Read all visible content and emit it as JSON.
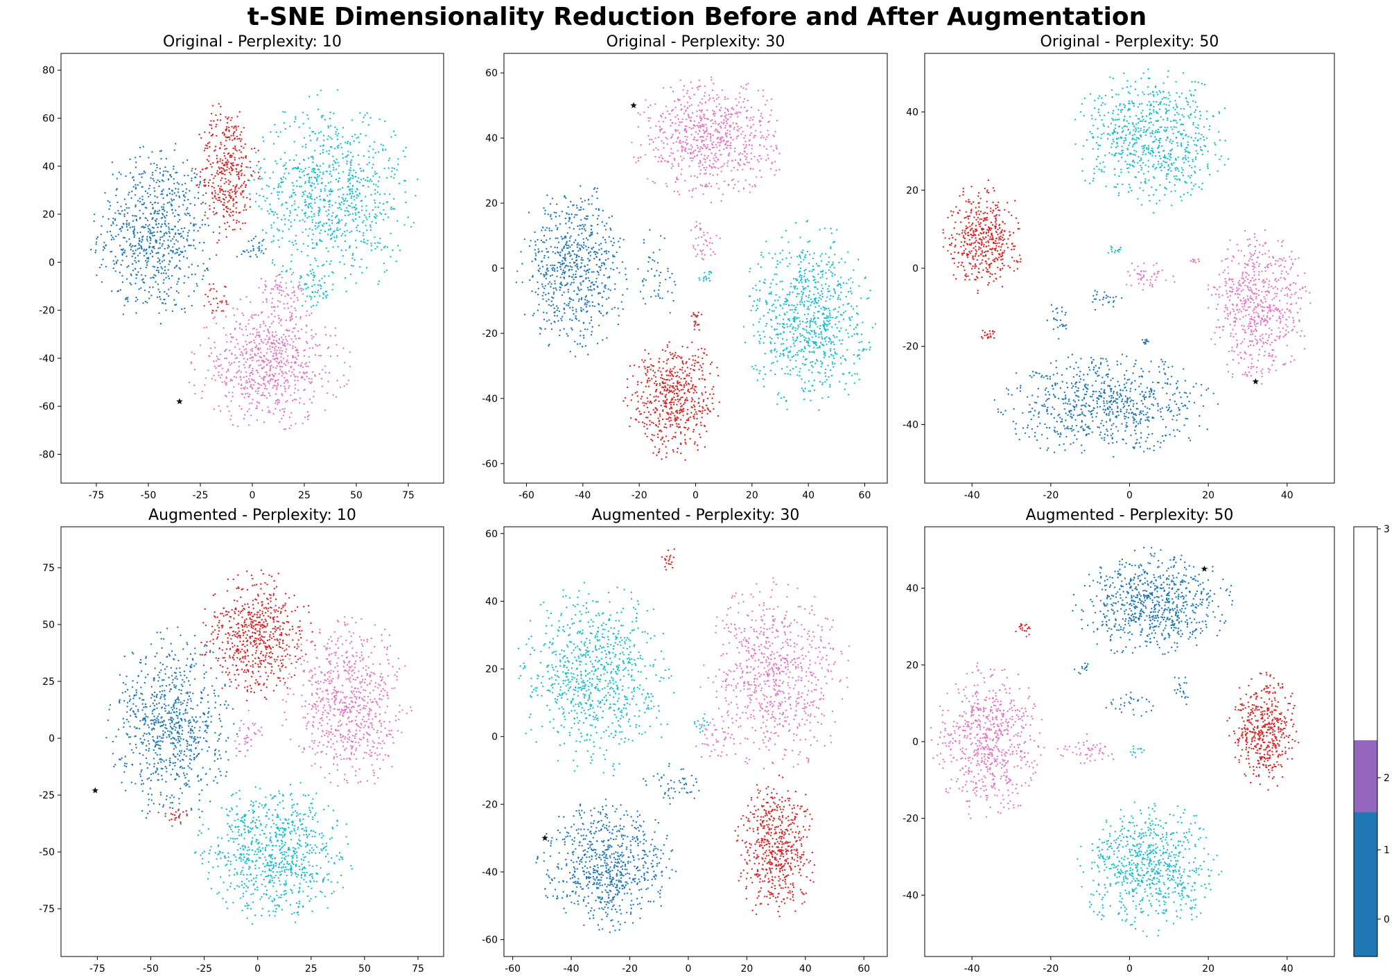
{
  "figure": {
    "title": "t-SNE Dimensionality Reduction Before and After Augmentation"
  },
  "colors": {
    "class_0": "#1f77b4",
    "class_1": "#d62728",
    "class_2": "#e377c2",
    "class_3": "#17becf",
    "star": "#111111",
    "colorbar": [
      "#1f77b4",
      "#1f77b4",
      "#9467bd",
      "#ffffff"
    ]
  },
  "chart_data": [
    {
      "type": "scatter",
      "title": "Original - Perplexity: 10",
      "xlim": [
        -92,
        92
      ],
      "ylim": [
        -92,
        87
      ],
      "xticks": [
        -75,
        -50,
        -25,
        0,
        25,
        50,
        75
      ],
      "yticks": [
        -80,
        -60,
        -40,
        -20,
        0,
        20,
        40,
        60,
        80
      ],
      "clusters": [
        {
          "class": 0,
          "cx": -47,
          "cy": 12,
          "rx": 30,
          "ry": 38,
          "n": 720
        },
        {
          "class": 1,
          "cx": -12,
          "cy": 38,
          "rx": 15,
          "ry": 30,
          "n": 380
        },
        {
          "class": 3,
          "cx": 38,
          "cy": 28,
          "rx": 40,
          "ry": 42,
          "n": 850
        },
        {
          "class": 2,
          "cx": 8,
          "cy": -42,
          "rx": 38,
          "ry": 28,
          "n": 720
        },
        {
          "class": 2,
          "cx": 14,
          "cy": -12,
          "rx": 14,
          "ry": 8,
          "n": 60
        },
        {
          "class": 1,
          "cx": -18,
          "cy": -16,
          "rx": 8,
          "ry": 8,
          "n": 30
        },
        {
          "class": 3,
          "cx": 30,
          "cy": -12,
          "rx": 10,
          "ry": 8,
          "n": 40
        },
        {
          "class": 0,
          "cx": 0,
          "cy": 5,
          "rx": 8,
          "ry": 6,
          "n": 30
        }
      ],
      "star": {
        "x": -35,
        "y": -58
      }
    },
    {
      "type": "scatter",
      "title": "Original - Perplexity: 30",
      "xlim": [
        -68,
        68
      ],
      "ylim": [
        -66,
        66
      ],
      "xticks": [
        -60,
        -40,
        -20,
        0,
        20,
        40,
        60
      ],
      "yticks": [
        -60,
        -40,
        -20,
        0,
        20,
        40,
        60
      ],
      "clusters": [
        {
          "class": 2,
          "cx": 5,
          "cy": 40,
          "rx": 27,
          "ry": 19,
          "n": 700
        },
        {
          "class": 0,
          "cx": -43,
          "cy": 0,
          "rx": 20,
          "ry": 26,
          "n": 650
        },
        {
          "class": 3,
          "cx": 40,
          "cy": -15,
          "rx": 23,
          "ry": 29,
          "n": 800
        },
        {
          "class": 1,
          "cx": -8,
          "cy": -40,
          "rx": 17,
          "ry": 19,
          "n": 560
        },
        {
          "class": 0,
          "cx": -13,
          "cy": -2,
          "rx": 8,
          "ry": 16,
          "n": 50
        },
        {
          "class": 2,
          "cx": 3,
          "cy": 8,
          "rx": 6,
          "ry": 8,
          "n": 40
        },
        {
          "class": 1,
          "cx": 0,
          "cy": -16,
          "rx": 3,
          "ry": 4,
          "n": 20
        },
        {
          "class": 3,
          "cx": 4,
          "cy": -3,
          "rx": 3,
          "ry": 3,
          "n": 15
        }
      ],
      "star": {
        "x": -22,
        "y": 50
      }
    },
    {
      "type": "scatter",
      "title": "Original - Perplexity: 50",
      "xlim": [
        -52,
        52
      ],
      "ylim": [
        -55,
        55
      ],
      "xticks": [
        -40,
        -20,
        0,
        20,
        40
      ],
      "yticks": [
        -40,
        -20,
        0,
        20,
        40
      ],
      "clusters": [
        {
          "class": 3,
          "cx": 6,
          "cy": 33,
          "rx": 20,
          "ry": 18,
          "n": 720
        },
        {
          "class": 1,
          "cx": -37,
          "cy": 8,
          "rx": 10,
          "ry": 14,
          "n": 460
        },
        {
          "class": 2,
          "cx": 33,
          "cy": -10,
          "rx": 13,
          "ry": 20,
          "n": 620
        },
        {
          "class": 0,
          "cx": -6,
          "cy": -35,
          "rx": 28,
          "ry": 13,
          "n": 720
        },
        {
          "class": 1,
          "cx": -36,
          "cy": -17,
          "rx": 2,
          "ry": 2,
          "n": 20
        },
        {
          "class": 0,
          "cx": -18,
          "cy": -13,
          "rx": 3,
          "ry": 5,
          "n": 25
        },
        {
          "class": 0,
          "cx": -6,
          "cy": -8,
          "rx": 5,
          "ry": 3,
          "n": 25
        },
        {
          "class": 2,
          "cx": 5,
          "cy": -2,
          "rx": 7,
          "ry": 4,
          "n": 45
        },
        {
          "class": 3,
          "cx": -4,
          "cy": 5,
          "rx": 2,
          "ry": 2,
          "n": 12
        },
        {
          "class": 2,
          "cx": 17,
          "cy": 2,
          "rx": 2,
          "ry": 1,
          "n": 10
        },
        {
          "class": 0,
          "cx": 4,
          "cy": -19,
          "rx": 1,
          "ry": 1,
          "n": 10
        }
      ],
      "star": {
        "x": 32,
        "y": -29
      }
    },
    {
      "type": "scatter",
      "title": "Augmented - Perplexity: 10",
      "xlim": [
        -92,
        87
      ],
      "ylim": [
        -96,
        93
      ],
      "xticks": [
        -75,
        -50,
        -25,
        0,
        25,
        50,
        75
      ],
      "yticks": [
        -75,
        -50,
        -25,
        0,
        25,
        50,
        75
      ],
      "clusters": [
        {
          "class": 0,
          "cx": -40,
          "cy": 5,
          "rx": 30,
          "ry": 42,
          "n": 780
        },
        {
          "class": 1,
          "cx": 0,
          "cy": 45,
          "rx": 26,
          "ry": 28,
          "n": 600
        },
        {
          "class": 2,
          "cx": 42,
          "cy": 15,
          "rx": 30,
          "ry": 38,
          "n": 700
        },
        {
          "class": 3,
          "cx": 8,
          "cy": -50,
          "rx": 36,
          "ry": 32,
          "n": 800
        },
        {
          "class": 1,
          "cx": -38,
          "cy": -34,
          "rx": 6,
          "ry": 5,
          "n": 20
        },
        {
          "class": 2,
          "cx": -5,
          "cy": 0,
          "rx": 8,
          "ry": 12,
          "n": 40
        }
      ],
      "star": {
        "x": -76,
        "y": -23
      }
    },
    {
      "type": "scatter",
      "title": "Augmented - Perplexity: 30",
      "xlim": [
        -63,
        68
      ],
      "ylim": [
        -65,
        62
      ],
      "xticks": [
        -60,
        -40,
        -20,
        0,
        20,
        40,
        60
      ],
      "yticks": [
        -60,
        -40,
        -20,
        0,
        20,
        40,
        60
      ],
      "clusters": [
        {
          "class": 3,
          "cx": -32,
          "cy": 17,
          "rx": 27,
          "ry": 28,
          "n": 800
        },
        {
          "class": 2,
          "cx": 30,
          "cy": 18,
          "rx": 25,
          "ry": 28,
          "n": 720
        },
        {
          "class": 0,
          "cx": -28,
          "cy": -38,
          "rx": 23,
          "ry": 19,
          "n": 720
        },
        {
          "class": 1,
          "cx": 30,
          "cy": -33,
          "rx": 14,
          "ry": 21,
          "n": 560
        },
        {
          "class": 1,
          "cx": -6,
          "cy": 52,
          "rx": 3,
          "ry": 4,
          "n": 20
        },
        {
          "class": 0,
          "cx": -5,
          "cy": -14,
          "rx": 12,
          "ry": 6,
          "n": 50
        },
        {
          "class": 2,
          "cx": 10,
          "cy": 0,
          "rx": 8,
          "ry": 10,
          "n": 40
        },
        {
          "class": 3,
          "cx": 5,
          "cy": 4,
          "rx": 3,
          "ry": 3,
          "n": 15
        }
      ],
      "star": {
        "x": -49,
        "y": -30
      }
    },
    {
      "type": "scatter",
      "title": "Augmented - Perplexity: 50",
      "xlim": [
        -52,
        52
      ],
      "ylim": [
        -56,
        56
      ],
      "xticks": [
        -40,
        -20,
        0,
        20,
        40
      ],
      "yticks": [
        -40,
        -20,
        0,
        20,
        40
      ],
      "clusters": [
        {
          "class": 0,
          "cx": 6,
          "cy": 36,
          "rx": 20,
          "ry": 14,
          "n": 720
        },
        {
          "class": 2,
          "cx": -36,
          "cy": 0,
          "rx": 14,
          "ry": 20,
          "n": 640
        },
        {
          "class": 1,
          "cx": 34,
          "cy": 3,
          "rx": 9,
          "ry": 15,
          "n": 460
        },
        {
          "class": 3,
          "cx": 5,
          "cy": -33,
          "rx": 18,
          "ry": 17,
          "n": 720
        },
        {
          "class": 1,
          "cx": -27,
          "cy": 29,
          "rx": 2,
          "ry": 2,
          "n": 20
        },
        {
          "class": 0,
          "cx": -12,
          "cy": 19,
          "rx": 2,
          "ry": 2,
          "n": 12
        },
        {
          "class": 0,
          "cx": 0,
          "cy": 10,
          "rx": 6,
          "ry": 4,
          "n": 30
        },
        {
          "class": 0,
          "cx": 13,
          "cy": 13,
          "rx": 2,
          "ry": 6,
          "n": 20
        },
        {
          "class": 2,
          "cx": -10,
          "cy": -2,
          "rx": 9,
          "ry": 4,
          "n": 50
        },
        {
          "class": 3,
          "cx": 2,
          "cy": -3,
          "rx": 2,
          "ry": 2,
          "n": 12
        }
      ],
      "star": {
        "x": 19,
        "y": 45
      }
    }
  ],
  "colorbar": {
    "tick_labels": [
      "0",
      "1",
      "2",
      "3"
    ]
  }
}
